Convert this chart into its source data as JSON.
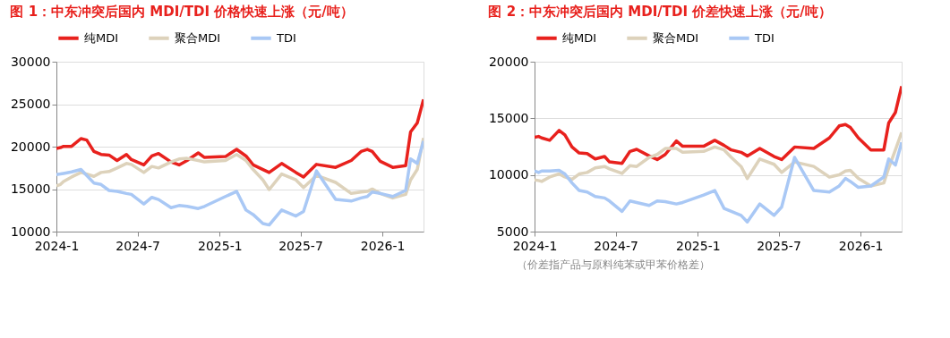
{
  "chart_data": [
    {
      "type": "line",
      "title": "图 1：中东冲突后国内 MDI/TDI 价格快速上涨（元/吨）",
      "x": [
        "2024-01-01",
        "2024-01-10",
        "2024-01-17",
        "2024-02-04",
        "2024-02-25",
        "2024-03-09",
        "2024-03-25",
        "2024-04-10",
        "2024-04-28",
        "2024-05-16",
        "2024-06-06",
        "2024-06-17",
        "2024-07-15",
        "2024-08-02",
        "2024-08-17",
        "2024-09-14",
        "2024-10-02",
        "2024-10-20",
        "2024-11-14",
        "2024-11-28",
        "2025-01-14",
        "2025-02-08",
        "2025-03-01",
        "2025-03-17",
        "2025-04-08",
        "2025-04-22",
        "2025-05-20",
        "2025-06-21",
        "2025-07-08",
        "2025-08-06",
        "2025-09-18",
        "2025-10-23",
        "2025-11-14",
        "2025-11-28",
        "2025-12-09",
        "2025-12-27",
        "2026-01-24",
        "2026-02-22",
        "2026-03-05",
        "2026-03-20",
        "2026-04-03"
      ],
      "series": [
        {
          "name": "纯MDI",
          "color": "#e8211d",
          "values": [
            19790,
            19890,
            20030,
            20030,
            20950,
            20780,
            19430,
            19080,
            19010,
            18370,
            19080,
            18480,
            17850,
            18900,
            19190,
            18200,
            17850,
            18370,
            19260,
            18730,
            18830,
            19680,
            18900,
            17850,
            17310,
            16960,
            18020,
            16960,
            16430,
            17910,
            17560,
            18370,
            19430,
            19680,
            19430,
            18270,
            17560,
            17770,
            21730,
            22790,
            25550
          ]
        },
        {
          "name": "聚合MDI",
          "color": "#ddd2bb",
          "values": [
            15370,
            15550,
            15900,
            16430,
            16960,
            16780,
            16500,
            16960,
            17070,
            17490,
            18020,
            17910,
            16960,
            17670,
            17490,
            18200,
            18550,
            18620,
            18370,
            18200,
            18370,
            19080,
            18370,
            17310,
            16080,
            14950,
            16780,
            16080,
            15190,
            16610,
            15790,
            14490,
            14660,
            14730,
            15010,
            14490,
            13960,
            14380,
            16080,
            17310,
            21020
          ]
        },
        {
          "name": "TDI",
          "color": "#a9c8f5",
          "values": [
            16710,
            16780,
            16850,
            17030,
            17310,
            16610,
            15720,
            15550,
            14840,
            14730,
            14490,
            14380,
            13250,
            14030,
            13780,
            12820,
            13070,
            12970,
            12720,
            12970,
            14130,
            14730,
            12540,
            12010,
            10950,
            10780,
            12540,
            11830,
            12370,
            17140,
            13780,
            13600,
            13960,
            14130,
            14660,
            14490,
            14130,
            14840,
            18550,
            18020,
            20670
          ]
        }
      ],
      "xlim": [
        "2024-01-01",
        "2026-04-03"
      ],
      "xticks": [
        {
          "value": "2024-01-01",
          "label": "2024-1"
        },
        {
          "value": "2024-07-01",
          "label": "2024-7"
        },
        {
          "value": "2025-01-01",
          "label": "2025-1"
        },
        {
          "value": "2025-07-01",
          "label": "2025-7"
        },
        {
          "value": "2026-01-01",
          "label": "2026-1"
        }
      ],
      "ylim": [
        10000,
        30000
      ],
      "yticks": [
        10000,
        15000,
        20000,
        25000,
        30000
      ],
      "grid": "y",
      "legend": "top"
    },
    {
      "type": "line",
      "title": "图 2：中东冲突后国内 MDI/TDI 价差快速上涨（元/吨）",
      "x": [
        "2024-01-01",
        "2024-01-10",
        "2024-01-17",
        "2024-02-04",
        "2024-02-25",
        "2024-03-09",
        "2024-03-25",
        "2024-04-10",
        "2024-04-28",
        "2024-05-16",
        "2024-06-06",
        "2024-06-17",
        "2024-07-15",
        "2024-08-02",
        "2024-08-17",
        "2024-09-14",
        "2024-10-02",
        "2024-10-20",
        "2024-11-14",
        "2024-11-28",
        "2025-01-14",
        "2025-02-08",
        "2025-03-01",
        "2025-03-17",
        "2025-04-08",
        "2025-04-22",
        "2025-05-20",
        "2025-06-21",
        "2025-07-08",
        "2025-08-06",
        "2025-09-18",
        "2025-10-23",
        "2025-11-14",
        "2025-11-28",
        "2025-12-09",
        "2025-12-27",
        "2026-01-24",
        "2026-02-22",
        "2026-03-05",
        "2026-03-20",
        "2026-04-03"
      ],
      "series": [
        {
          "name": "纯MDI",
          "color": "#e8211d",
          "values": [
            13320,
            13400,
            13270,
            13060,
            13930,
            13530,
            12470,
            11940,
            11890,
            11410,
            11630,
            11150,
            11020,
            12080,
            12260,
            11680,
            11360,
            11810,
            13000,
            12530,
            12530,
            13060,
            12610,
            12210,
            12000,
            11680,
            12340,
            11630,
            11360,
            12470,
            12340,
            13270,
            14330,
            14460,
            14200,
            13270,
            12210,
            12210,
            14590,
            15520,
            17830
          ]
        },
        {
          "name": "聚合MDI",
          "color": "#ddd2bb",
          "values": [
            9560,
            9510,
            9430,
            9820,
            10090,
            9820,
            9610,
            10090,
            10220,
            10620,
            10750,
            10540,
            10140,
            10830,
            10750,
            11550,
            11810,
            12340,
            12340,
            12000,
            12080,
            12470,
            12210,
            11550,
            10750,
            9690,
            11410,
            10940,
            10220,
            11150,
            10750,
            9820,
            10010,
            10350,
            10410,
            9690,
            9030,
            9290,
            10620,
            12210,
            13750
          ]
        },
        {
          "name": "TDI",
          "color": "#a9c8f5",
          "values": [
            10350,
            10220,
            10350,
            10350,
            10410,
            10090,
            9290,
            8630,
            8500,
            8100,
            7970,
            7700,
            6780,
            7700,
            7570,
            7310,
            7700,
            7650,
            7440,
            7570,
            8230,
            8630,
            7040,
            6780,
            6430,
            5850,
            7440,
            6430,
            7170,
            11550,
            8630,
            8500,
            9030,
            9690,
            9430,
            8900,
            9030,
            9820,
            11410,
            10880,
            12870
          ]
        }
      ],
      "xlim": [
        "2024-01-01",
        "2026-04-03"
      ],
      "xticks": [
        {
          "value": "2024-01-01",
          "label": "2024-1"
        },
        {
          "value": "2024-07-01",
          "label": "2024-7"
        },
        {
          "value": "2025-01-01",
          "label": "2025-1"
        },
        {
          "value": "2025-07-01",
          "label": "2025-7"
        },
        {
          "value": "2026-01-01",
          "label": "2026-1"
        }
      ],
      "ylim": [
        5000,
        20000
      ],
      "yticks": [
        5000,
        10000,
        15000,
        20000
      ],
      "grid": "y",
      "legend": "top",
      "annotations": [
        "（价差指产品与原料纯苯或甲苯价格差）"
      ]
    }
  ]
}
